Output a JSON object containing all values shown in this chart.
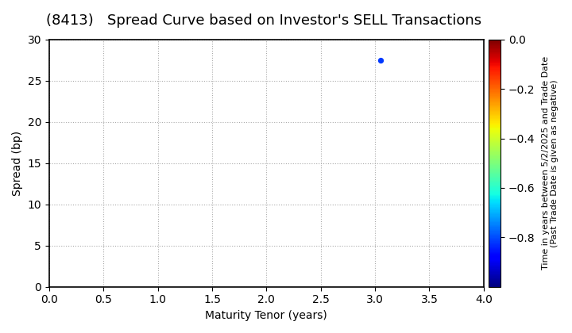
{
  "title": "(8413)   Spread Curve based on Investor's SELL Transactions",
  "xlabel": "Maturity Tenor (years)",
  "ylabel": "Spread (bp)",
  "colorbar_label_line1": "Time in years between 5/2/2025 and Trade Date",
  "colorbar_label_line2": "(Past Trade Date is given as negative)",
  "xlim": [
    0.0,
    4.0
  ],
  "ylim": [
    0,
    30
  ],
  "xticks": [
    0.0,
    0.5,
    1.0,
    1.5,
    2.0,
    2.5,
    3.0,
    3.5,
    4.0
  ],
  "yticks": [
    0,
    5,
    10,
    15,
    20,
    25,
    30
  ],
  "scatter_x": [
    3.05
  ],
  "scatter_y": [
    27.5
  ],
  "scatter_color": [
    -0.82
  ],
  "colorbar_min": -1.0,
  "colorbar_max": 0.0,
  "colorbar_ticks": [
    0.0,
    -0.2,
    -0.4,
    -0.6,
    -0.8
  ],
  "marker_size": 18,
  "grid_color": "#aaaaaa",
  "grid_linestyle": "dotted",
  "background_color": "#ffffff",
  "title_fontsize": 13,
  "axis_fontsize": 10,
  "tick_fontsize": 10,
  "colorbar_fontsize": 8
}
